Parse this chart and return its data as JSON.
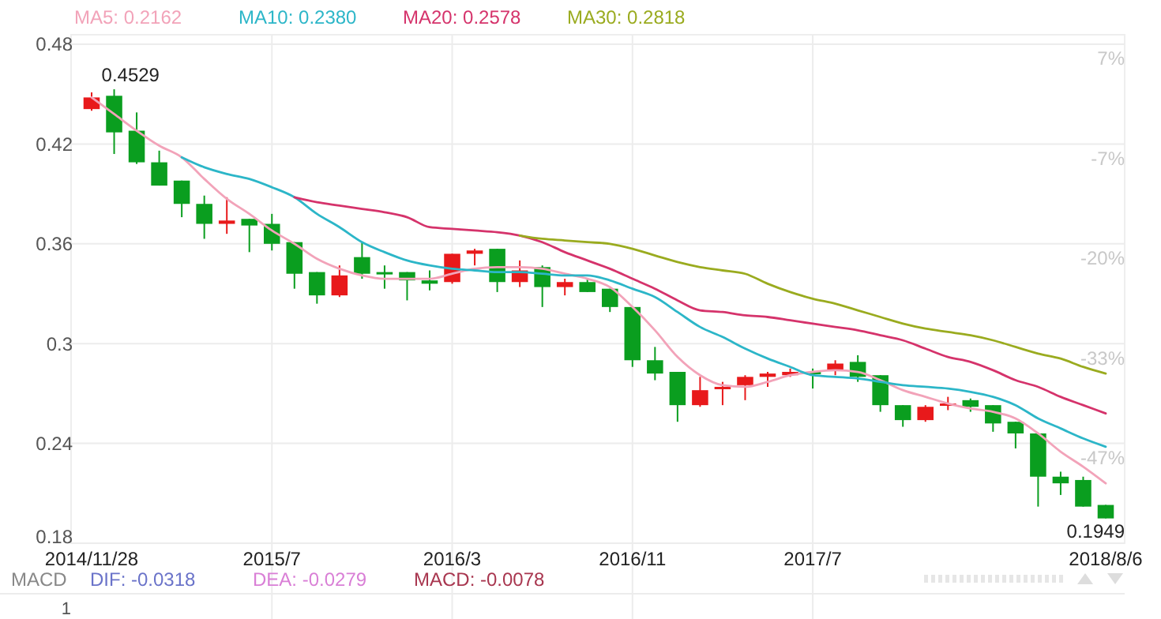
{
  "chart_data": {
    "type": "candlestick",
    "categories": [
      "2014/11/28",
      null,
      null,
      null,
      null,
      null,
      null,
      null,
      "2015/7",
      null,
      null,
      null,
      null,
      null,
      null,
      null,
      "2016/3",
      null,
      null,
      null,
      null,
      null,
      null,
      null,
      "2016/11",
      null,
      null,
      null,
      null,
      null,
      null,
      null,
      "2017/7",
      null,
      null,
      null,
      null,
      null,
      null,
      null,
      null,
      null,
      null,
      null,
      null,
      "2018/8/6"
    ],
    "ohlc": [
      [
        0.441,
        0.451,
        0.44,
        0.448
      ],
      [
        0.449,
        0.4529,
        0.414,
        0.427
      ],
      [
        0.428,
        0.439,
        0.408,
        0.409
      ],
      [
        0.409,
        0.416,
        0.395,
        0.395
      ],
      [
        0.398,
        0.398,
        0.376,
        0.384
      ],
      [
        0.384,
        0.389,
        0.363,
        0.372
      ],
      [
        0.372,
        0.388,
        0.366,
        0.374
      ],
      [
        0.375,
        0.375,
        0.355,
        0.371
      ],
      [
        0.372,
        0.378,
        0.356,
        0.36
      ],
      [
        0.361,
        0.361,
        0.333,
        0.342
      ],
      [
        0.343,
        0.343,
        0.324,
        0.329
      ],
      [
        0.329,
        0.347,
        0.328,
        0.341
      ],
      [
        0.352,
        0.361,
        0.339,
        0.342
      ],
      [
        0.343,
        0.347,
        0.333,
        0.342
      ],
      [
        0.343,
        0.343,
        0.326,
        0.338
      ],
      [
        0.338,
        0.344,
        0.332,
        0.336
      ],
      [
        0.337,
        0.354,
        0.336,
        0.354
      ],
      [
        0.354,
        0.357,
        0.347,
        0.356
      ],
      [
        0.357,
        0.357,
        0.331,
        0.337
      ],
      [
        0.337,
        0.35,
        0.334,
        0.344
      ],
      [
        0.346,
        0.347,
        0.322,
        0.334
      ],
      [
        0.334,
        0.339,
        0.329,
        0.337
      ],
      [
        0.337,
        0.339,
        0.331,
        0.331
      ],
      [
        0.333,
        0.333,
        0.319,
        0.322
      ],
      [
        0.322,
        0.322,
        0.286,
        0.29
      ],
      [
        0.29,
        0.298,
        0.278,
        0.282
      ],
      [
        0.283,
        0.283,
        0.253,
        0.263
      ],
      [
        0.263,
        0.28,
        0.262,
        0.272
      ],
      [
        0.273,
        0.277,
        0.263,
        0.274
      ],
      [
        0.275,
        0.281,
        0.266,
        0.28
      ],
      [
        0.28,
        0.283,
        0.274,
        0.282
      ],
      [
        0.281,
        0.285,
        0.28,
        0.283
      ],
      [
        0.283,
        0.285,
        0.273,
        0.282
      ],
      [
        0.284,
        0.29,
        0.281,
        0.288
      ],
      [
        0.289,
        0.293,
        0.277,
        0.28
      ],
      [
        0.281,
        0.281,
        0.259,
        0.263
      ],
      [
        0.263,
        0.263,
        0.25,
        0.254
      ],
      [
        0.254,
        0.263,
        0.253,
        0.262
      ],
      [
        0.263,
        0.268,
        0.26,
        0.264
      ],
      [
        0.266,
        0.267,
        0.259,
        0.262
      ],
      [
        0.263,
        0.263,
        0.247,
        0.252
      ],
      [
        0.253,
        0.253,
        0.237,
        0.246
      ],
      [
        0.246,
        0.246,
        0.202,
        0.22
      ],
      [
        0.22,
        0.223,
        0.209,
        0.216
      ],
      [
        0.218,
        0.22,
        0.202,
        0.202
      ],
      [
        0.203,
        0.203,
        0.1949,
        0.1949
      ]
    ],
    "colors": [
      "#e8191b",
      "#0a9e1f",
      "#0a9e1f",
      "#0a9e1f",
      "#0a9e1f",
      "#0a9e1f",
      "#e8191b",
      "#0a9e1f",
      "#0a9e1f",
      "#0a9e1f",
      "#0a9e1f",
      "#e8191b",
      "#0a9e1f",
      "#0a9e1f",
      "#0a9e1f",
      "#0a9e1f",
      "#e8191b",
      "#e8191b",
      "#0a9e1f",
      "#e8191b",
      "#0a9e1f",
      "#e8191b",
      "#0a9e1f",
      "#0a9e1f",
      "#0a9e1f",
      "#0a9e1f",
      "#0a9e1f",
      "#e8191b",
      "#e8191b",
      "#e8191b",
      "#e8191b",
      "#e8191b",
      "#0a9e1f",
      "#e8191b",
      "#0a9e1f",
      "#0a9e1f",
      "#0a9e1f",
      "#e8191b",
      "#e8191b",
      "#0a9e1f",
      "#0a9e1f",
      "#0a9e1f",
      "#0a9e1f",
      "#0a9e1f",
      "#0a9e1f",
      "#0a9e1f"
    ],
    "series": [
      {
        "type": "line",
        "name": "MA5: 0.2162",
        "color": "#f2a3b9",
        "values": [
          0.448,
          0.438,
          0.428,
          0.419,
          0.412,
          0.399,
          0.387,
          0.378,
          0.368,
          0.36,
          0.351,
          0.345,
          0.341,
          0.339,
          0.339,
          0.339,
          0.342,
          0.345,
          0.346,
          0.346,
          0.345,
          0.342,
          0.339,
          0.334,
          0.322,
          0.308,
          0.292,
          0.281,
          0.275,
          0.274,
          0.277,
          0.281,
          0.283,
          0.284,
          0.283,
          0.278,
          0.272,
          0.268,
          0.264,
          0.261,
          0.259,
          0.255,
          0.246,
          0.235,
          0.226,
          0.216
        ]
      },
      {
        "type": "line",
        "name": "MA10: 0.2380",
        "color": "#2cb6c8",
        "values": [
          null,
          null,
          null,
          null,
          0.412,
          0.406,
          0.402,
          0.399,
          0.394,
          0.388,
          0.378,
          0.37,
          0.361,
          0.355,
          0.35,
          0.347,
          0.345,
          0.344,
          0.343,
          0.343,
          0.342,
          0.341,
          0.341,
          0.338,
          0.333,
          0.328,
          0.319,
          0.31,
          0.304,
          0.297,
          0.291,
          0.286,
          0.281,
          0.28,
          0.279,
          0.277,
          0.275,
          0.274,
          0.273,
          0.271,
          0.268,
          0.263,
          0.255,
          0.249,
          0.243,
          0.238
        ]
      },
      {
        "type": "line",
        "name": "MA20: 0.2578",
        "color": "#d5336b",
        "values": [
          null,
          null,
          null,
          null,
          null,
          null,
          null,
          null,
          null,
          0.388,
          0.385,
          0.383,
          0.381,
          0.379,
          0.376,
          0.37,
          0.369,
          0.368,
          0.367,
          0.365,
          0.361,
          0.355,
          0.35,
          0.345,
          0.339,
          0.333,
          0.326,
          0.32,
          0.319,
          0.317,
          0.316,
          0.314,
          0.312,
          0.31,
          0.308,
          0.305,
          0.302,
          0.297,
          0.292,
          0.289,
          0.284,
          0.278,
          0.274,
          0.268,
          0.263,
          0.258
        ]
      },
      {
        "type": "line",
        "name": "MA30: 0.2818",
        "color": "#9aab1f",
        "values": [
          null,
          null,
          null,
          null,
          null,
          null,
          null,
          null,
          null,
          null,
          null,
          null,
          null,
          null,
          null,
          null,
          null,
          null,
          null,
          0.365,
          0.363,
          0.362,
          0.361,
          0.36,
          0.357,
          0.353,
          0.349,
          0.346,
          0.344,
          0.342,
          0.336,
          0.331,
          0.327,
          0.324,
          0.32,
          0.316,
          0.312,
          0.309,
          0.307,
          0.305,
          0.302,
          0.298,
          0.294,
          0.291,
          0.286,
          0.282
        ]
      }
    ],
    "ylim": [
      0.18,
      0.48
    ],
    "yticks": [
      0.18,
      0.24,
      0.3,
      0.36,
      0.42,
      0.48
    ],
    "y2lim": [
      -59.9,
      6.9
    ],
    "y2ticks": [
      {
        "value": 6.9,
        "label": "7%"
      },
      {
        "value": -6.5,
        "label": "-7%"
      },
      {
        "value": -19.8,
        "label": "-20%"
      },
      {
        "value": -33.2,
        "label": "-33%"
      },
      {
        "value": -46.5,
        "label": "-47%"
      }
    ],
    "grid": true,
    "legend": "top",
    "annotations": [
      "0.4529",
      "0.1949",
      "MACD",
      "DIF: -0.0318",
      "DEA: -0.0279",
      "MACD: -0.0078",
      "1"
    ]
  }
}
